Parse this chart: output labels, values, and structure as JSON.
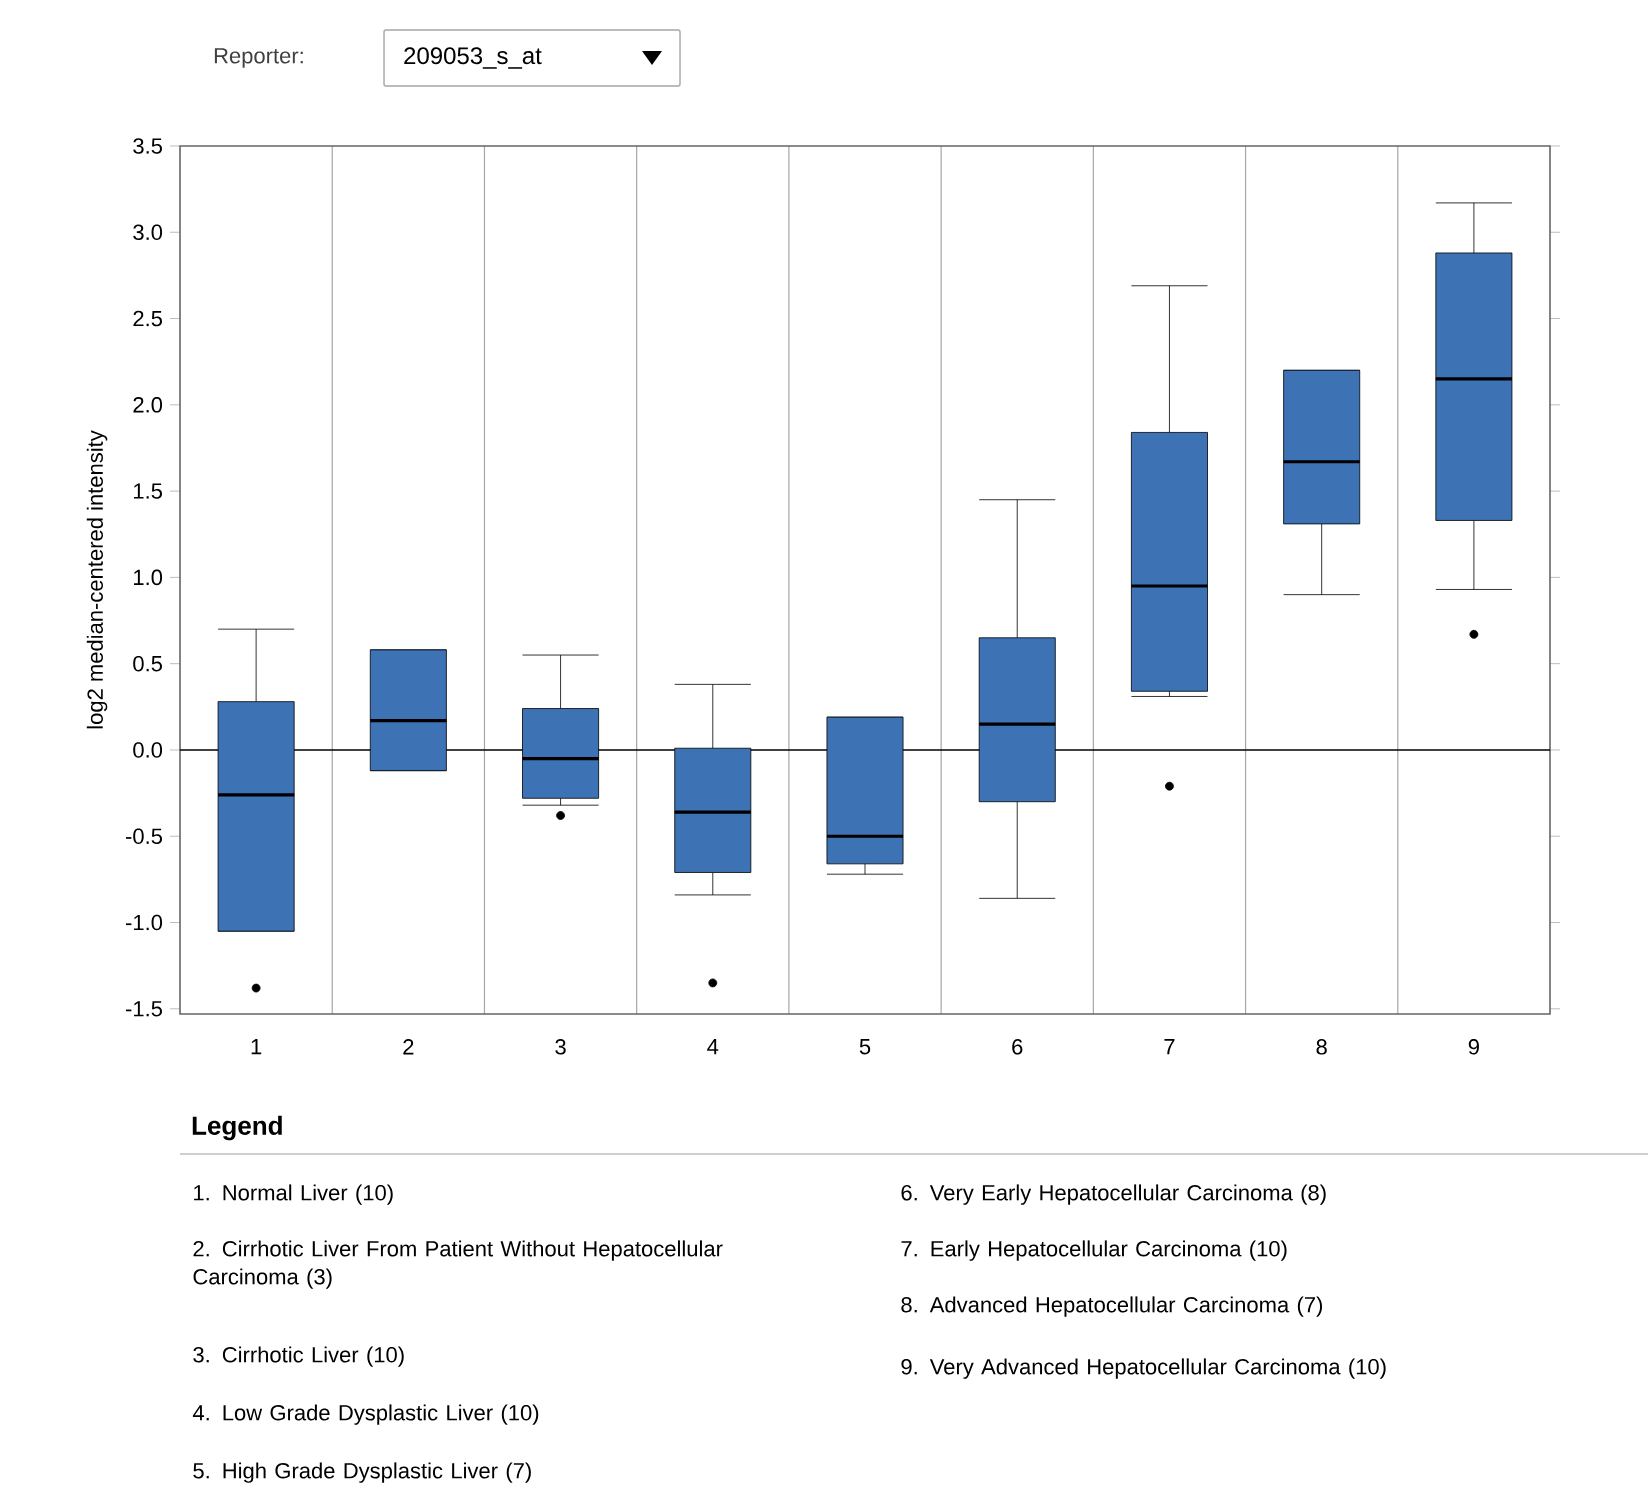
{
  "chart_data": {
    "type": "box",
    "ylabel": "log2 median-centered intensity",
    "legend_title": "Legend",
    "categories": [
      "1",
      "2",
      "3",
      "4",
      "5",
      "6",
      "7",
      "8",
      "9"
    ],
    "color": "#3d72b4",
    "boxes": [
      {
        "low": -1.05,
        "q1": -1.05,
        "median": -0.26,
        "q3": 0.28,
        "high": 0.7,
        "outliers": [
          -1.38
        ]
      },
      {
        "low": -0.12,
        "q1": -0.12,
        "median": 0.17,
        "q3": 0.58,
        "high": 0.58
      },
      {
        "low": -0.32,
        "q1": -0.28,
        "median": -0.05,
        "q3": 0.24,
        "high": 0.55,
        "outliers": [
          -0.38
        ]
      },
      {
        "low": -0.84,
        "q1": -0.71,
        "median": -0.36,
        "q3": 0.01,
        "high": 0.38,
        "outliers": [
          -1.35
        ]
      },
      {
        "low": -0.72,
        "q1": -0.66,
        "median": -0.5,
        "q3": 0.19,
        "high": 0.19
      },
      {
        "low": -0.86,
        "q1": -0.3,
        "median": 0.15,
        "q3": 0.65,
        "high": 1.45
      },
      {
        "low": 0.31,
        "q1": 0.34,
        "median": 0.95,
        "q3": 1.84,
        "high": 2.69,
        "outliers": [
          -0.21
        ]
      },
      {
        "low": 0.9,
        "q1": 1.31,
        "median": 1.67,
        "q3": 2.2,
        "high": 2.2
      },
      {
        "low": 0.93,
        "q1": 1.33,
        "median": 2.15,
        "q3": 2.88,
        "high": 3.17,
        "outliers": [
          0.67
        ]
      }
    ],
    "ylim": [
      -1.53,
      3.5
    ],
    "yticks": [
      -1.5,
      {
        "value": -1.0,
        "label": "-1.0"
      },
      -0.5,
      {
        "value": 0.0,
        "label": "0.0"
      },
      0.5,
      {
        "value": 1.0,
        "label": "1.0"
      },
      1.5,
      {
        "value": 2.0,
        "label": "2.0"
      },
      2.5,
      {
        "value": 3.0,
        "label": "3.0"
      },
      3.5
    ],
    "grid": "x",
    "marker": "circle",
    "ref_lines": [
      {
        "axis": "y",
        "value": 0
      }
    ],
    "annotations": [
      "Reporter:",
      "209053_s_at",
      "1. Normal Liver (10)",
      "2. Cirrhotic Liver From Patient Without Hepatocellular Carcinoma (3)",
      "3. Cirrhotic Liver (10)",
      "4. Low Grade Dysplastic Liver (10)",
      "5. High Grade Dysplastic Liver (7)",
      "6. Very Early Hepatocellular Carcinoma (8)",
      "7. Early Hepatocellular Carcinoma (10)",
      "8. Advanced Hepatocellular Carcinoma (7)",
      "9. Very Advanced Hepatocellular Carcinoma (10)"
    ]
  }
}
